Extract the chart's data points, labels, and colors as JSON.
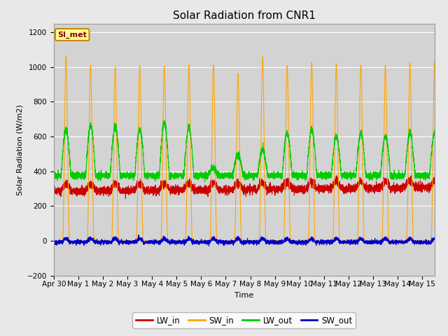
{
  "title": "Solar Radiation from CNR1",
  "xlabel": "Time",
  "ylabel": "Solar Radiation (W/m2)",
  "ylim": [
    -200,
    1250
  ],
  "yticks": [
    -200,
    0,
    200,
    400,
    600,
    800,
    1000,
    1200
  ],
  "annotation": "SI_met",
  "background_color": "#e8e8e8",
  "plot_bg_color": "#d3d3d3",
  "legend": [
    "LW_in",
    "SW_in",
    "LW_out",
    "SW_out"
  ],
  "colors": {
    "LW_in": "#cc0000",
    "SW_in": "#ffa500",
    "LW_out": "#00cc00",
    "SW_out": "#0000cc"
  },
  "num_days": 15.5,
  "points_per_day": 288
}
